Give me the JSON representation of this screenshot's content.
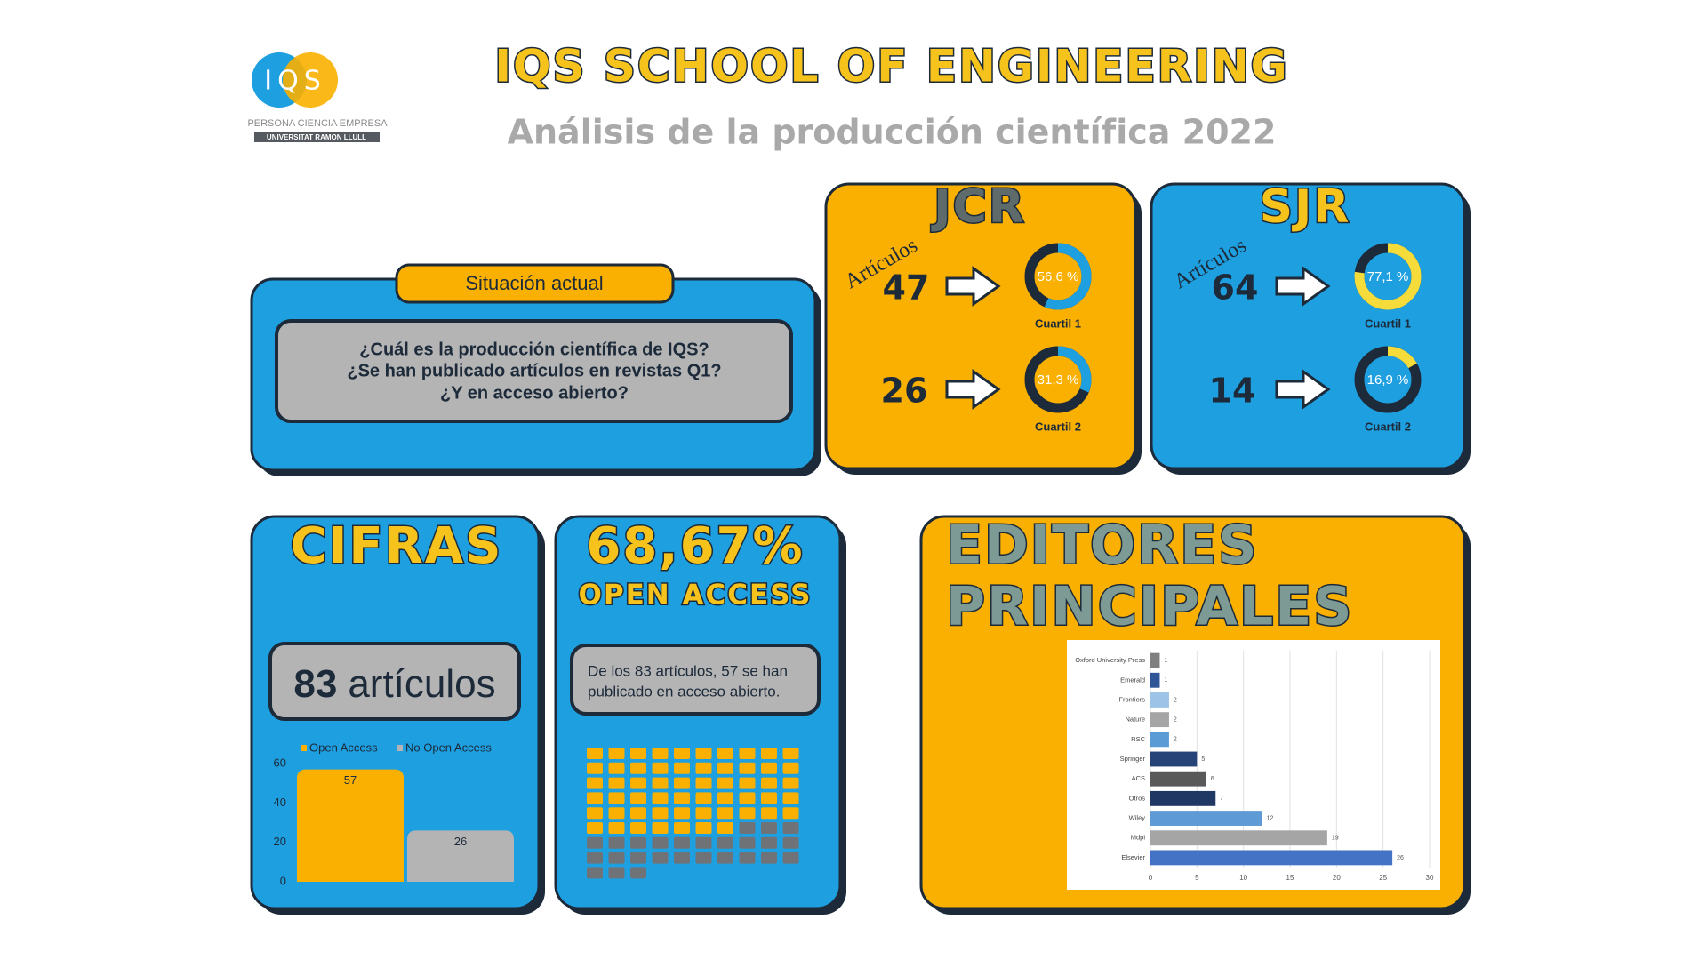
{
  "header": {
    "logo_text": "IQS",
    "logo_tagline": "PERSONA CIENCIA EMPRESA",
    "logo_university": "UNIVERSITAT RAMON LLULL",
    "title": "IQS SCHOOL OF ENGINEERING",
    "subtitle": "Análisis de la producción científica 2022"
  },
  "situacion": {
    "tab": "Situación actual",
    "lines": [
      "¿Cuál es la producción científica de IQS?",
      "¿Se han publicado artículos en revistas Q1?",
      "¿Y en acceso abierto?"
    ]
  },
  "jcr": {
    "title": "JCR",
    "label": "Artículos",
    "counts": [
      47,
      26
    ]
  },
  "sjr": {
    "title": "SJR",
    "label": "Artículos",
    "counts": [
      64,
      14
    ]
  },
  "cifras": {
    "title": "CIFRAS",
    "count": 83,
    "unit": "artículos"
  },
  "open_access": {
    "title": "68,67%",
    "subtitle": "OPEN ACCESS",
    "text_lines": [
      "De los 83 artículos, 57 se han",
      "publicado en acceso abierto."
    ]
  },
  "editores": {
    "title_lines": [
      "EDITORES",
      "PRINCIPALES"
    ]
  },
  "chart_data": [
    {
      "type": "bar",
      "categories": [
        null
      ],
      "series": [
        {
          "name": "Open Access",
          "color": "#f9b000",
          "values": [
            57
          ]
        },
        {
          "name": "No Open Access",
          "color": "#b4b4b4",
          "values": [
            26
          ]
        }
      ],
      "ylim": [
        0,
        60
      ],
      "yticks": [
        0,
        20,
        40,
        60
      ]
    },
    {
      "type": "barh",
      "categories": [
        "Oxford University Press",
        "Emerald",
        "Frontiers",
        "Nature",
        "RSC",
        "Springer",
        "ACS",
        "Otros",
        "Wiley",
        "Mdpi",
        "Elsevier"
      ],
      "values": [
        1,
        1,
        2,
        2,
        2,
        5,
        6,
        7,
        12,
        19,
        26
      ],
      "colors": [
        "#7f7f7f",
        "#2f5597",
        "#9dc3e6",
        "#a5a5a5",
        "#5b9bd5",
        "#264478",
        "#595959",
        "#203864",
        "#5e9bd6",
        "#a5a5a5",
        "#4472c4"
      ],
      "xlim": [
        0,
        30
      ],
      "xticks": [
        0,
        5,
        10,
        15,
        20,
        25,
        30
      ],
      "grid": true
    },
    {
      "type": "waffle",
      "series": [
        {
          "name": "Open Access",
          "color": "#f9b000",
          "values": [
            57
          ]
        },
        {
          "name": "No Open Access",
          "color": "#6f7378",
          "values": [
            26
          ]
        }
      ]
    },
    {
      "type": "donut",
      "values": [
        56.6
      ],
      "value_labels": [
        "56,6 %"
      ],
      "label": "Cuartil 1",
      "color": "#1e9fe0",
      "track_color": "#1c2a3a"
    },
    {
      "type": "donut",
      "values": [
        31.3
      ],
      "value_labels": [
        "31,3 %"
      ],
      "label": "Cuartil 2",
      "color": "#1e9fe0",
      "track_color": "#1c2a3a"
    },
    {
      "type": "donut",
      "values": [
        77.1
      ],
      "value_labels": [
        "77,1 %"
      ],
      "label": "Cuartil 1",
      "color": "#f6dc3a",
      "track_color": "#1c2a3a"
    },
    {
      "type": "donut",
      "values": [
        16.9
      ],
      "value_labels": [
        "16,9 %"
      ],
      "label": "Cuartil 2",
      "color": "#f6dc3a",
      "track_color": "#1c2a3a"
    }
  ]
}
